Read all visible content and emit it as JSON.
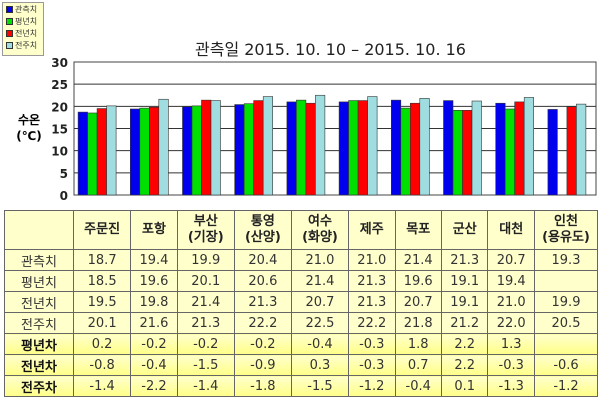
{
  "legend": [
    "관측치",
    "평년치",
    "전년치",
    "전주치"
  ],
  "chart_data": {
    "type": "bar",
    "title": "관측일 2015. 10. 10 – 2015. 10. 16",
    "ylabel": "수온 (℃)",
    "ylim": [
      0,
      30
    ],
    "yticks": [
      "0",
      "5",
      "10",
      "15",
      "20",
      "25",
      "30"
    ],
    "categories": [
      "주문진",
      "포항",
      "부산(기장)",
      "통영(산양)",
      "여수(화양)",
      "제주",
      "목포",
      "군산",
      "대천",
      "인천(용유도)"
    ],
    "colors": [
      "#0000ee",
      "#00e000",
      "#ff0000",
      "#a0dde0"
    ],
    "series": [
      {
        "name": "관측치",
        "values": [
          18.7,
          19.4,
          19.9,
          20.4,
          21.0,
          21.0,
          21.4,
          21.3,
          20.7,
          19.3
        ]
      },
      {
        "name": "평년치",
        "values": [
          18.5,
          19.6,
          20.1,
          20.6,
          21.4,
          21.3,
          19.6,
          19.1,
          19.4,
          null
        ]
      },
      {
        "name": "전년치",
        "values": [
          19.5,
          19.8,
          21.4,
          21.3,
          20.7,
          21.3,
          20.7,
          19.1,
          21.0,
          19.9
        ]
      },
      {
        "name": "전주치",
        "values": [
          20.1,
          21.6,
          21.3,
          22.2,
          22.5,
          22.2,
          21.8,
          21.2,
          22.0,
          20.5
        ]
      }
    ]
  },
  "table": {
    "headers": [
      [
        "주문진",
        ""
      ],
      [
        "포항",
        ""
      ],
      [
        "부산",
        "(기장)"
      ],
      [
        "통영",
        "(산양)"
      ],
      [
        "여수",
        "(화양)"
      ],
      [
        "제주",
        ""
      ],
      [
        "목포",
        ""
      ],
      [
        "군산",
        ""
      ],
      [
        "대천",
        ""
      ],
      [
        "인천",
        "(용유도)"
      ]
    ],
    "rows": [
      {
        "label": "관측치",
        "cls": "obs",
        "values": [
          "18.7",
          "19.4",
          "19.9",
          "20.4",
          "21.0",
          "21.0",
          "21.4",
          "21.3",
          "20.7",
          "19.3"
        ]
      },
      {
        "label": "평년치",
        "cls": "obs",
        "values": [
          "18.5",
          "19.6",
          "20.1",
          "20.6",
          "21.4",
          "21.3",
          "19.6",
          "19.1",
          "19.4",
          ""
        ]
      },
      {
        "label": "전년치",
        "cls": "obs",
        "values": [
          "19.5",
          "19.8",
          "21.4",
          "21.3",
          "20.7",
          "21.3",
          "20.7",
          "19.1",
          "21.0",
          "19.9"
        ]
      },
      {
        "label": "전주치",
        "cls": "obs",
        "values": [
          "20.1",
          "21.6",
          "21.3",
          "22.2",
          "22.5",
          "22.2",
          "21.8",
          "21.2",
          "22.0",
          "20.5"
        ]
      },
      {
        "label": "평년차",
        "cls": "diff",
        "values": [
          "0.2",
          "-0.2",
          "-0.2",
          "-0.2",
          "-0.4",
          "-0.3",
          "1.8",
          "2.2",
          "1.3",
          ""
        ]
      },
      {
        "label": "전년차",
        "cls": "diff",
        "values": [
          "-0.8",
          "-0.4",
          "-1.5",
          "-0.9",
          "0.3",
          "-0.3",
          "0.7",
          "2.2",
          "-0.3",
          "-0.6"
        ]
      },
      {
        "label": "전주차",
        "cls": "diff",
        "values": [
          "-1.4",
          "-2.2",
          "-1.4",
          "-1.8",
          "-1.5",
          "-1.2",
          "-0.4",
          "0.1",
          "-1.3",
          "-1.2"
        ]
      }
    ]
  }
}
